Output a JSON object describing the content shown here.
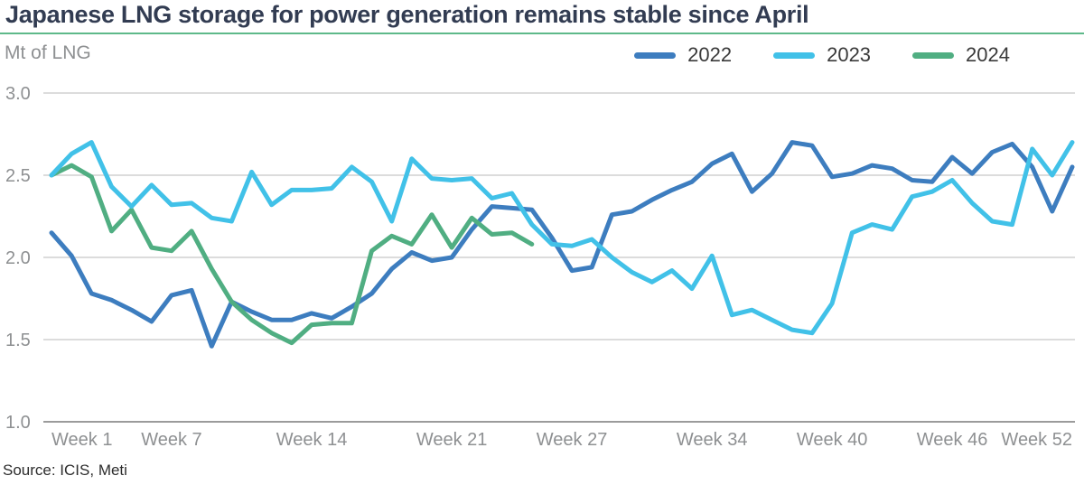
{
  "source": "Source: ICIS, Meti",
  "chart_data": {
    "type": "line",
    "title": "Japanese LNG storage for power generation remains stable since April",
    "ylabel": "Mt of LNG",
    "xlabel": "",
    "x_unit": "week of year",
    "ylim": [
      1.0,
      3.0
    ],
    "xlim": [
      1,
      52
    ],
    "grid": "horizontal",
    "legend_position": "top-right",
    "accent_underline_color": "#5eb98a",
    "gridline_color": "#d0d0d0",
    "axis_line_color": "#9b9b9b",
    "tick_label_color": "#8e9092",
    "y_ticks": [
      {
        "value": 3.0,
        "label": "3.0"
      },
      {
        "value": 2.5,
        "label": "2.5"
      },
      {
        "value": 2.0,
        "label": "2.0"
      },
      {
        "value": 1.5,
        "label": "1.5"
      },
      {
        "value": 1.0,
        "label": "1.0"
      }
    ],
    "x_ticks": [
      {
        "week": 1,
        "label": "Week 1"
      },
      {
        "week": 7,
        "label": "Week 7"
      },
      {
        "week": 14,
        "label": "Week 14"
      },
      {
        "week": 21,
        "label": "Week 21"
      },
      {
        "week": 27,
        "label": "Week 27"
      },
      {
        "week": 34,
        "label": "Week 34"
      },
      {
        "week": 40,
        "label": "Week 40"
      },
      {
        "week": 46,
        "label": "Week 46"
      },
      {
        "week": 52,
        "label": "Week 52"
      }
    ],
    "series": [
      {
        "name": "2022",
        "color": "#3d7dbf",
        "start_week": 1,
        "values": [
          2.15,
          2.01,
          1.78,
          1.74,
          1.68,
          1.61,
          1.77,
          1.8,
          1.46,
          1.73,
          1.67,
          1.62,
          1.62,
          1.66,
          1.63,
          1.7,
          1.78,
          1.93,
          2.03,
          1.98,
          2.0,
          2.17,
          2.31,
          2.3,
          2.29,
          2.12,
          1.92,
          1.94,
          2.26,
          2.28,
          2.35,
          2.41,
          2.46,
          2.57,
          2.63,
          2.4,
          2.51,
          2.7,
          2.68,
          2.49,
          2.51,
          2.56,
          2.54,
          2.47,
          2.46,
          2.61,
          2.51,
          2.64,
          2.69,
          2.55,
          2.28,
          2.55
        ]
      },
      {
        "name": "2023",
        "color": "#41c1e8",
        "start_week": 1,
        "values": [
          2.5,
          2.63,
          2.7,
          2.43,
          2.31,
          2.44,
          2.32,
          2.33,
          2.24,
          2.22,
          2.52,
          2.32,
          2.41,
          2.41,
          2.42,
          2.55,
          2.46,
          2.22,
          2.6,
          2.48,
          2.47,
          2.48,
          2.36,
          2.39,
          2.2,
          2.08,
          2.07,
          2.11,
          2.0,
          1.91,
          1.85,
          1.92,
          1.81,
          2.01,
          1.65,
          1.68,
          1.62,
          1.56,
          1.54,
          1.72,
          2.15,
          2.2,
          2.17,
          2.37,
          2.4,
          2.47,
          2.33,
          2.22,
          2.2,
          2.66,
          2.5,
          2.7
        ]
      },
      {
        "name": "2024",
        "color": "#50ae82",
        "start_week": 1,
        "values": [
          2.5,
          2.56,
          2.49,
          2.16,
          2.29,
          2.06,
          2.04,
          2.16,
          1.93,
          1.73,
          1.62,
          1.54,
          1.48,
          1.59,
          1.6,
          1.6,
          2.04,
          2.13,
          2.08,
          2.26,
          2.06,
          2.24,
          2.14,
          2.15,
          2.08
        ]
      }
    ]
  }
}
